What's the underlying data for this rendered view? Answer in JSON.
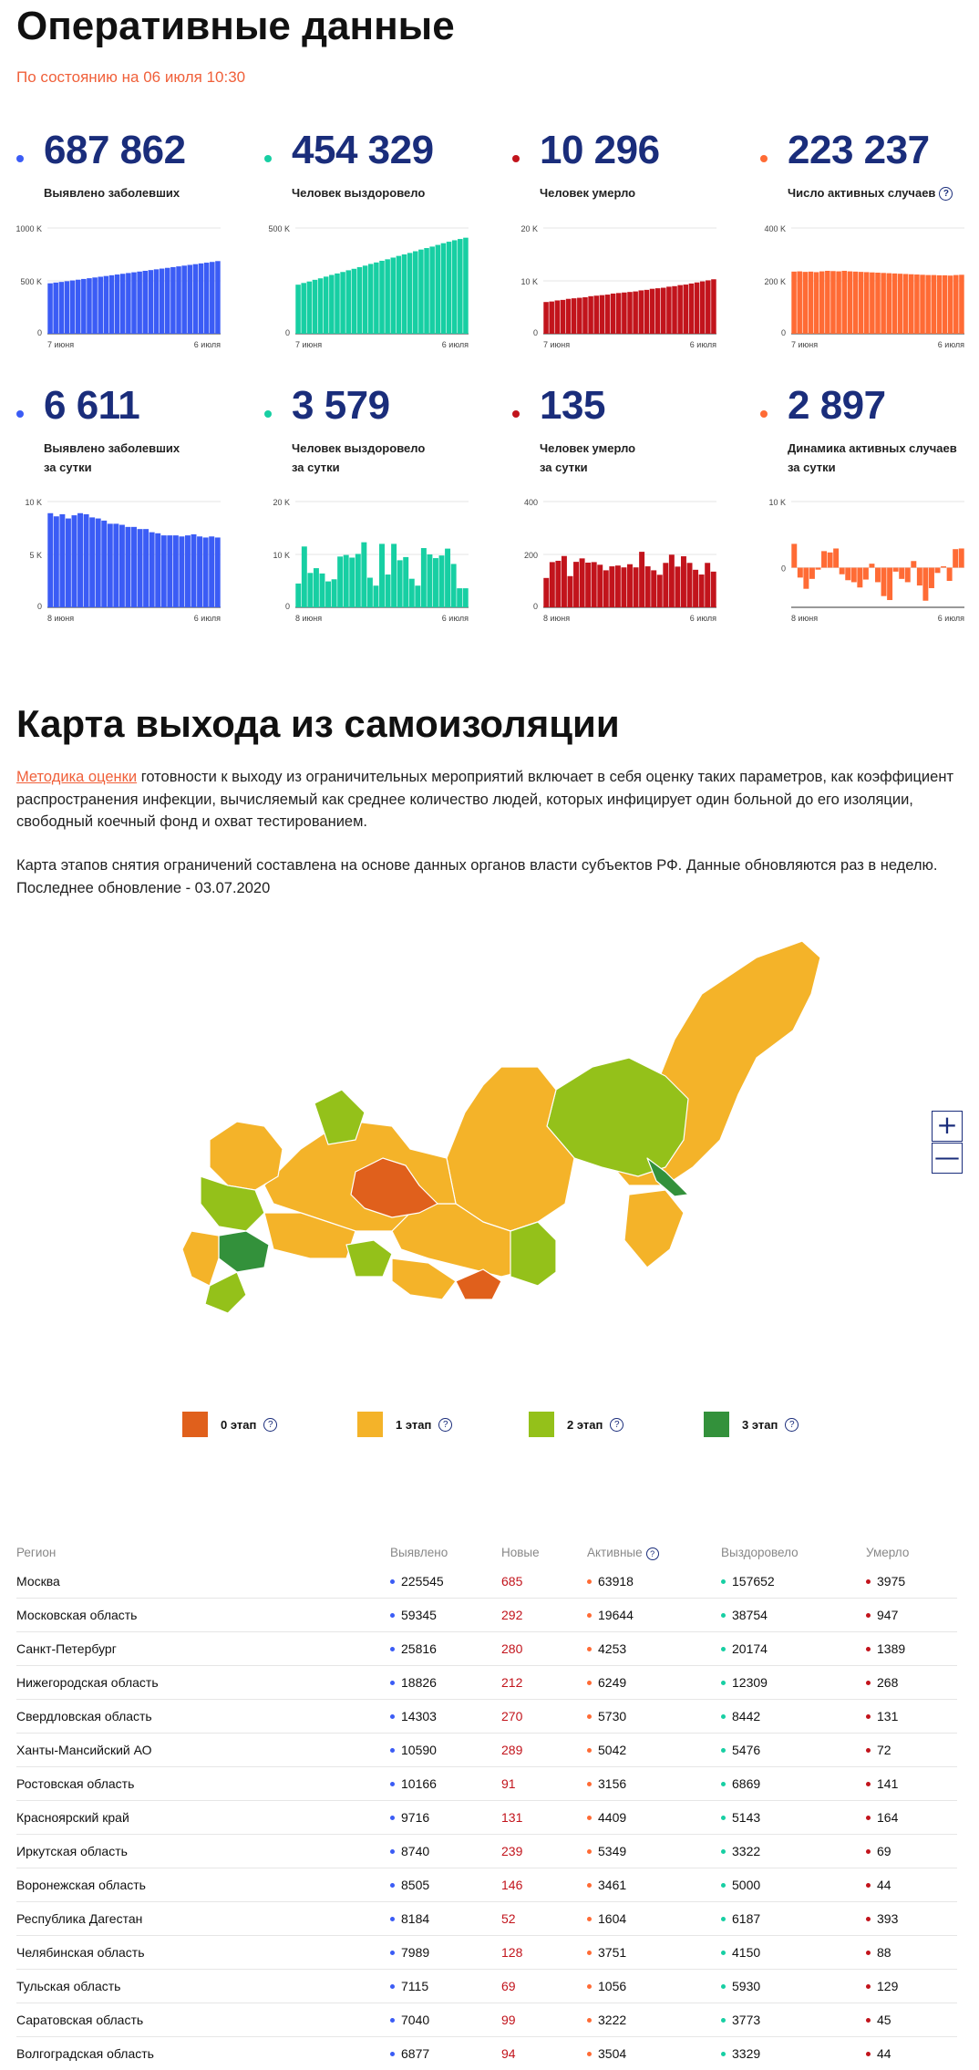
{
  "page": {
    "title": "Оперативные данные",
    "as_of": "По состоянию на 06 июля 10:30"
  },
  "colors": {
    "blue": "#3b5cf5",
    "teal": "#17cfa3",
    "red": "#c2141c",
    "orange": "#ff6b35",
    "stage0": "#e0601c",
    "stage1": "#f4b329",
    "stage2": "#94c11a",
    "stage3": "#33913b"
  },
  "stats_total": [
    {
      "value": "687 862",
      "label": "Выявлено заболевших",
      "label2": "",
      "help": "",
      "color": "blue",
      "chart": {
        "ymax_label": "1000 K",
        "ymid_label": "500 K",
        "y0_label": "0",
        "ymax": 1000,
        "ymid": 500,
        "x_start": "7 июня",
        "x_end": "6 июля",
        "values": [
          477,
          484,
          490,
          497,
          504,
          511,
          518,
          525,
          532,
          539,
          546,
          553,
          560,
          567,
          574,
          581,
          588,
          595,
          602,
          609,
          616,
          623,
          630,
          637,
          644,
          651,
          658,
          665,
          672,
          679,
          687
        ]
      }
    },
    {
      "value": "454 329",
      "label": "Человек выздоровело",
      "label2": "",
      "help": "",
      "color": "teal",
      "chart": {
        "ymax_label": "500 K",
        "ymid_label": "",
        "y0_label": "0",
        "ymax": 500,
        "ymid": null,
        "x_start": "7 июня",
        "x_end": "6 июля",
        "values": [
          232,
          240,
          247,
          255,
          262,
          270,
          278,
          285,
          292,
          300,
          307,
          315,
          322,
          330,
          337,
          345,
          352,
          360,
          368,
          375,
          382,
          390,
          398,
          405,
          412,
          420,
          428,
          435,
          442,
          448,
          454
        ]
      }
    },
    {
      "value": "10 296",
      "label": "Человек умерло",
      "label2": "",
      "help": "",
      "color": "red",
      "chart": {
        "ymax_label": "20 K",
        "ymid_label": "10 K",
        "y0_label": "0",
        "ymax": 20,
        "ymid": 10,
        "x_start": "7 июня",
        "x_end": "6 июля",
        "values": [
          6.0,
          6.1,
          6.3,
          6.4,
          6.6,
          6.7,
          6.8,
          6.9,
          7.1,
          7.2,
          7.3,
          7.4,
          7.6,
          7.7,
          7.8,
          7.9,
          8.0,
          8.2,
          8.3,
          8.5,
          8.6,
          8.7,
          8.9,
          9.0,
          9.2,
          9.3,
          9.5,
          9.7,
          9.9,
          10.1,
          10.3
        ]
      }
    },
    {
      "value": "223 237",
      "label": "Число активных случаев",
      "label2": "",
      "help": "?",
      "color": "orange",
      "chart": {
        "ymax_label": "400 K",
        "ymid_label": "200 K",
        "y0_label": "0",
        "ymax": 400,
        "ymid": 200,
        "x_start": "7 июня",
        "x_end": "6 июля",
        "values": [
          235,
          236,
          234,
          235,
          233,
          236,
          238,
          237,
          236,
          238,
          236,
          235,
          234,
          233,
          232,
          231,
          230,
          229,
          228,
          227,
          226,
          225,
          224,
          223,
          222,
          222,
          221,
          221,
          220,
          222,
          223
        ]
      }
    }
  ],
  "stats_daily": [
    {
      "value": "6 611",
      "label": "Выявлено заболевших",
      "label2": "за сутки",
      "help": "",
      "color": "blue",
      "chart": {
        "ymax_label": "10 K",
        "ymid_label": "5 K",
        "y0_label": "0",
        "ymin": 0,
        "ymax": 10,
        "ymid": 5,
        "x_start": "8 июня",
        "x_end": "6 июля",
        "values": [
          8.9,
          8.6,
          8.8,
          8.4,
          8.7,
          8.9,
          8.8,
          8.5,
          8.4,
          8.2,
          7.9,
          7.9,
          7.8,
          7.6,
          7.6,
          7.4,
          7.4,
          7.1,
          7.0,
          6.8,
          6.8,
          6.8,
          6.7,
          6.8,
          6.9,
          6.7,
          6.6,
          6.7,
          6.6
        ]
      }
    },
    {
      "value": "3 579",
      "label": "Человек выздоровело",
      "label2": "за сутки",
      "help": "",
      "color": "teal",
      "chart": {
        "ymax_label": "20 K",
        "ymid_label": "10 K",
        "y0_label": "0",
        "ymin": 0,
        "ymax": 20,
        "ymid": 10,
        "x_start": "8 июня",
        "x_end": "6 июля",
        "values": [
          4.5,
          11.5,
          6.5,
          7.4,
          6.4,
          4.9,
          5.3,
          9.6,
          9.9,
          9.4,
          10.1,
          12.3,
          5.6,
          4.1,
          12.0,
          6.2,
          12.0,
          8.9,
          9.5,
          5.4,
          4.1,
          11.2,
          10.0,
          9.3,
          9.8,
          11.1,
          8.2,
          3.6,
          3.6
        ]
      }
    },
    {
      "value": "135",
      "label": "Человек умерло",
      "label2": "за сутки",
      "help": "",
      "color": "red",
      "chart": {
        "ymax_label": "400",
        "ymid_label": "200",
        "y0_label": "0",
        "ymin": 0,
        "ymax": 400,
        "ymid": 200,
        "x_start": "8 июня",
        "x_end": "6 июля",
        "values": [
          111,
          171,
          176,
          194,
          118,
          172,
          185,
          169,
          171,
          161,
          140,
          155,
          158,
          151,
          163,
          151,
          210,
          155,
          140,
          123,
          168,
          199,
          154,
          193,
          168,
          142,
          124,
          168,
          135
        ]
      }
    },
    {
      "value": "2 897",
      "label": "Динамика активных случаев",
      "label2": "за сутки",
      "help": "",
      "color": "orange",
      "chart": {
        "ymax_label": "10 K",
        "ymid_label": "0",
        "y0_label": "",
        "ymin": -6,
        "ymax": 10,
        "ymid": 0,
        "x_start": "8 июня",
        "x_end": "6 июля",
        "values": [
          3.6,
          -1.5,
          -3.2,
          -1.7,
          -0.3,
          2.5,
          2.3,
          2.9,
          -1.0,
          -1.9,
          -2.2,
          -3.0,
          -1.8,
          0.6,
          -2.2,
          -4.3,
          -4.9,
          -0.6,
          -1.7,
          -2.2,
          1.0,
          -2.7,
          -5.0,
          -3.1,
          -0.8,
          0.2,
          -2.0,
          2.8,
          2.9
        ]
      }
    }
  ],
  "map_section": {
    "title": "Карта выхода из самоизоляции",
    "link_text": "Методика оценки",
    "para1_rest": " готовности к выходу из ограничительных мероприятий включает в себя оценку таких параметров, как коэффициент распространения инфекции, вычисляемый как среднее количество людей, которых инфицирует один больной до его изоляции, свободный коечный фонд и охват тестированием.",
    "para2_line1": "Карта этапов снятия ограничений составлена на основе данных органов власти субъектов РФ. Данные обновляются раз в неделю.",
    "para2_line2": "Последнее обновление - 03.07.2020",
    "zoom_in": "+",
    "zoom_out": "—",
    "legend": [
      {
        "label": "0 этап",
        "color": "stage0",
        "help": "?"
      },
      {
        "label": "1 этап",
        "color": "stage1",
        "help": "?"
      },
      {
        "label": "2 этап",
        "color": "stage2",
        "help": "?"
      },
      {
        "label": "3 этап",
        "color": "stage3",
        "help": "?"
      }
    ]
  },
  "table": {
    "headers": {
      "region": "Регион",
      "detected": "Выявлено",
      "new": "Новые",
      "active": "Активные",
      "active_help": "?",
      "recovered": "Выздоровело",
      "died": "Умерло"
    },
    "rows": [
      {
        "region": "Москва",
        "detected": "225545",
        "new": "685",
        "active": "63918",
        "recovered": "157652",
        "died": "3975"
      },
      {
        "region": "Московская область",
        "detected": "59345",
        "new": "292",
        "active": "19644",
        "recovered": "38754",
        "died": "947"
      },
      {
        "region": "Санкт-Петербург",
        "detected": "25816",
        "new": "280",
        "active": "4253",
        "recovered": "20174",
        "died": "1389"
      },
      {
        "region": "Нижегородская область",
        "detected": "18826",
        "new": "212",
        "active": "6249",
        "recovered": "12309",
        "died": "268"
      },
      {
        "region": "Свердловская область",
        "detected": "14303",
        "new": "270",
        "active": "5730",
        "recovered": "8442",
        "died": "131"
      },
      {
        "region": "Ханты-Мансийский АО",
        "detected": "10590",
        "new": "289",
        "active": "5042",
        "recovered": "5476",
        "died": "72"
      },
      {
        "region": "Ростовская область",
        "detected": "10166",
        "new": "91",
        "active": "3156",
        "recovered": "6869",
        "died": "141"
      },
      {
        "region": "Красноярский край",
        "detected": "9716",
        "new": "131",
        "active": "4409",
        "recovered": "5143",
        "died": "164"
      },
      {
        "region": "Иркутская область",
        "detected": "8740",
        "new": "239",
        "active": "5349",
        "recovered": "3322",
        "died": "69"
      },
      {
        "region": "Воронежская область",
        "detected": "8505",
        "new": "146",
        "active": "3461",
        "recovered": "5000",
        "died": "44"
      },
      {
        "region": "Республика Дагестан",
        "detected": "8184",
        "new": "52",
        "active": "1604",
        "recovered": "6187",
        "died": "393"
      },
      {
        "region": "Челябинская область",
        "detected": "7989",
        "new": "128",
        "active": "3751",
        "recovered": "4150",
        "died": "88"
      },
      {
        "region": "Тульская область",
        "detected": "7115",
        "new": "69",
        "active": "1056",
        "recovered": "5930",
        "died": "129"
      },
      {
        "region": "Саратовская область",
        "detected": "7040",
        "new": "99",
        "active": "3222",
        "recovered": "3773",
        "died": "45"
      },
      {
        "region": "Волгоградская область",
        "detected": "6877",
        "new": "94",
        "active": "3504",
        "recovered": "3329",
        "died": "44"
      }
    ]
  }
}
